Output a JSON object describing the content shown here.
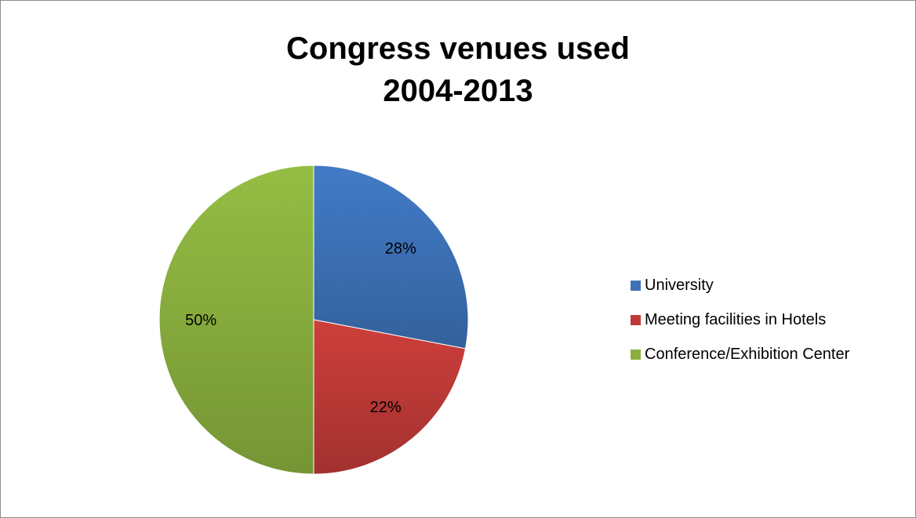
{
  "chart_data": {
    "type": "pie",
    "title_lines": [
      "Congress venues used",
      "2004-2013"
    ],
    "categories": [
      "University",
      "Meeting facilities in Hotels",
      "Conference/Exhibition Center"
    ],
    "values": [
      28,
      22,
      50
    ],
    "data_labels": [
      "28%",
      "22%",
      "50%"
    ],
    "colors": [
      "#3d72b8",
      "#bf3a37",
      "#8aaf3e"
    ],
    "legend_position": "right"
  }
}
